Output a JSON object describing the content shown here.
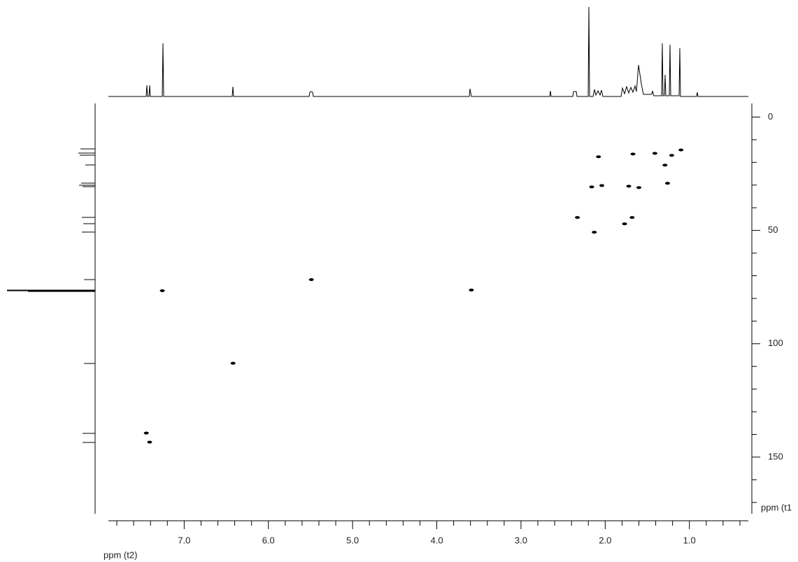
{
  "chart_data": {
    "type": "scatter",
    "x_label": "ppm (t2)",
    "y_label": "ppm (t1",
    "xlim": [
      7.9,
      0.3
    ],
    "ylim": [
      -6,
      175
    ],
    "xticks": [
      {
        "value": 7,
        "label": "7.0"
      },
      {
        "value": 6,
        "label": "6.0"
      },
      {
        "value": 5,
        "label": "5.0"
      },
      {
        "value": 4,
        "label": "4.0"
      },
      {
        "value": 3,
        "label": "3.0"
      },
      {
        "value": 2,
        "label": "2.0"
      },
      {
        "value": 1,
        "label": "1.0"
      }
    ],
    "x_minor_ticks": [
      7.8,
      7.6,
      7.4,
      7.2,
      6.8,
      6.6,
      6.4,
      6.2,
      5.8,
      5.6,
      5.4,
      5.2,
      4.8,
      4.6,
      4.4,
      4.2,
      3.8,
      3.6,
      3.4,
      3.2,
      2.8,
      2.6,
      2.4,
      2.2,
      1.8,
      1.6,
      1.4,
      1.2,
      0.8,
      0.6,
      0.4
    ],
    "yticks": [
      0,
      50,
      100,
      150
    ],
    "y_minor_ticks": [
      10,
      20,
      30,
      40,
      60,
      70,
      80,
      90,
      110,
      120,
      130,
      140,
      160,
      170
    ],
    "color": "#000000",
    "x": [
      7.45,
      7.41,
      7.26,
      6.42,
      5.49,
      3.59,
      2.33,
      2.13,
      2.16,
      2.08,
      2.04,
      1.77,
      1.72,
      1.68,
      1.67,
      1.6,
      1.41,
      1.29,
      1.26,
      1.21,
      1.1
    ],
    "values": [
      139.4,
      143.4,
      76.6,
      108.6,
      71.7,
      76.3,
      44.3,
      50.8,
      30.8,
      17.5,
      30.2,
      47.1,
      30.5,
      44.3,
      16.3,
      31.1,
      16,
      21.2,
      29.2,
      16.9,
      14.5
    ]
  }
}
